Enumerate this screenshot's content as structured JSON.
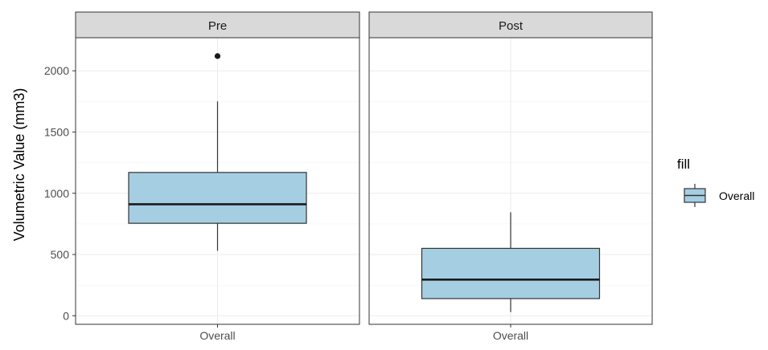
{
  "chart_data": {
    "type": "boxplot",
    "ylabel": "Volumetric Value (mm3)",
    "xlabel": "",
    "ylim": [
      -70,
      2270
    ],
    "yticks": [
      0,
      500,
      1000,
      1500,
      2000
    ],
    "ytick_labels": [
      "0",
      "500",
      "1000",
      "1500",
      "2000"
    ],
    "grid": true,
    "fill_color": "#a6cee3",
    "legend": {
      "title": "fill",
      "entries": [
        "Overall"
      ],
      "position": "right"
    },
    "panels": [
      {
        "facet": "Pre",
        "category": "Overall",
        "whisker_low": 530,
        "q1": 755,
        "median": 910,
        "q3": 1170,
        "whisker_high": 1750,
        "outliers": [
          2120
        ]
      },
      {
        "facet": "Post",
        "category": "Overall",
        "whisker_low": 30,
        "q1": 140,
        "median": 295,
        "q3": 550,
        "whisker_high": 845,
        "outliers": []
      }
    ]
  }
}
